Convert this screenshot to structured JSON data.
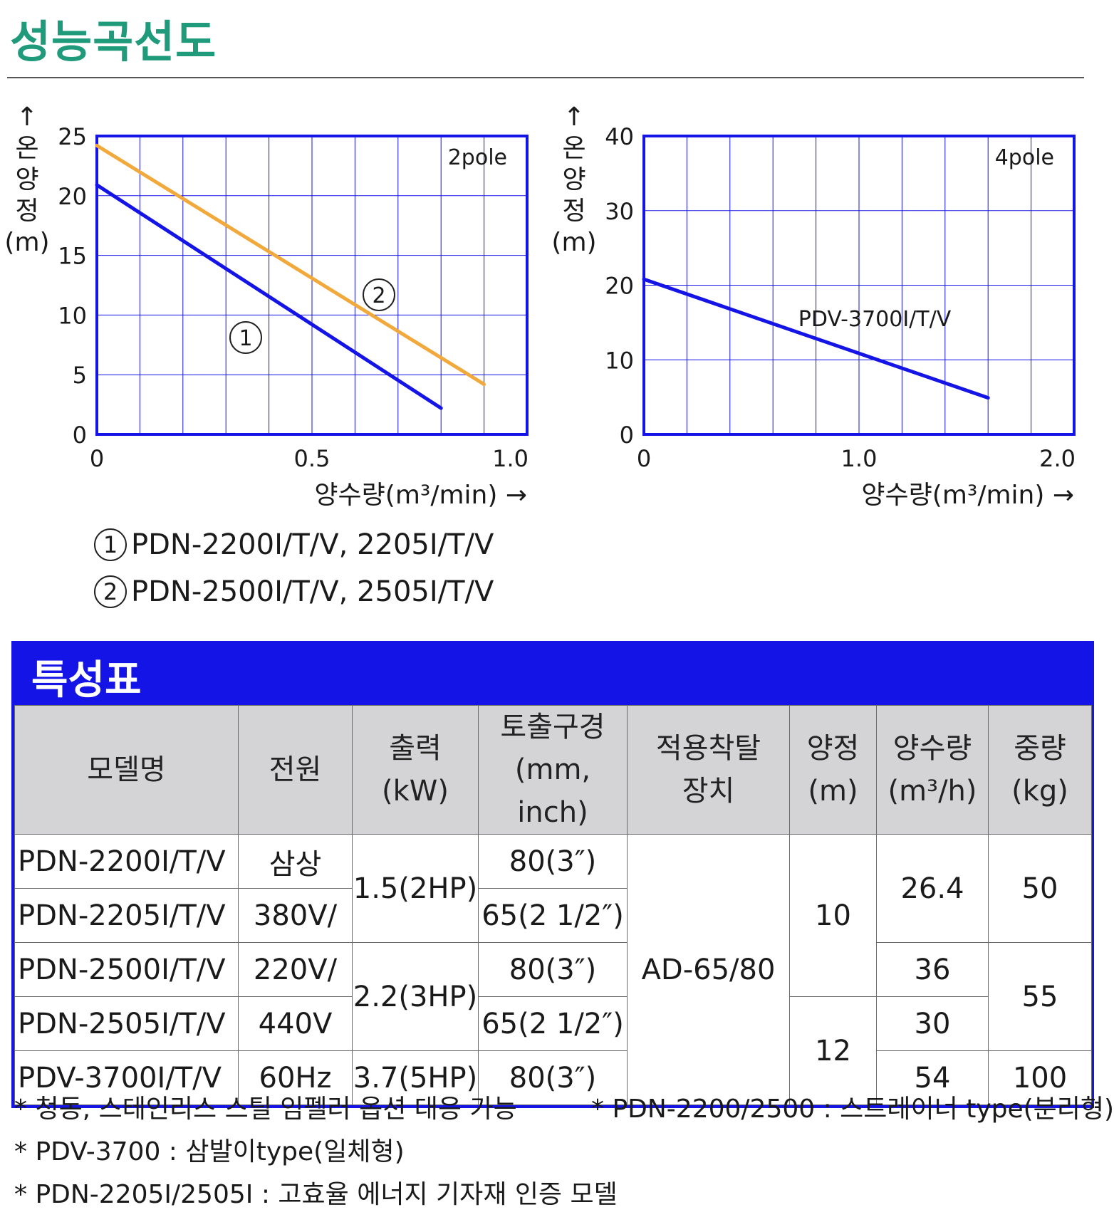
{
  "page_title": "성능곡선도",
  "chart_data": [
    {
      "type": "line",
      "pole_label": "2pole",
      "ylabel_chars": [
        "↑",
        "온",
        "양",
        "정",
        "(m)"
      ],
      "xlabel": "양수량(m³/min) →",
      "xlim": [
        0,
        1.0
      ],
      "ylim": [
        0,
        25
      ],
      "x_ticks": [
        0,
        0.5,
        1.0
      ],
      "x_tick_labels": [
        "0",
        "0.5",
        "1.0"
      ],
      "y_ticks": [
        0,
        5,
        10,
        15,
        20,
        25
      ],
      "y_tick_labels": [
        "0",
        "5",
        "10",
        "15",
        "20",
        "25"
      ],
      "grid": true,
      "series": [
        {
          "name": "①",
          "color": "#1414e6",
          "x": [
            0,
            0.8
          ],
          "y": [
            20.9,
            2.2
          ]
        },
        {
          "name": "②",
          "color": "#f2a93b",
          "x": [
            0,
            0.9
          ],
          "y": [
            24.2,
            4.2
          ]
        }
      ]
    },
    {
      "type": "line",
      "pole_label": "4pole",
      "ylabel_chars": [
        "↑",
        "온",
        "양",
        "정",
        "(m)"
      ],
      "xlabel": "양수량(m³/min) →",
      "xlim": [
        0,
        2.0
      ],
      "ylim": [
        0,
        40
      ],
      "x_ticks": [
        0,
        1.0,
        2.0
      ],
      "x_tick_labels": [
        "0",
        "1.0",
        "2.0"
      ],
      "y_ticks": [
        0,
        10,
        20,
        30,
        40
      ],
      "y_tick_labels": [
        "0",
        "10",
        "20",
        "30",
        "40"
      ],
      "grid": true,
      "series": [
        {
          "name": "PDV-3700I/T/V",
          "color": "#1414e6",
          "x": [
            0,
            1.6
          ],
          "y": [
            20.8,
            4.9
          ]
        }
      ]
    }
  ],
  "legend": [
    {
      "num": "1",
      "text": "PDN-2200I/T/V, 2205I/T/V"
    },
    {
      "num": "2",
      "text": "PDN-2500I/T/V, 2505I/T/V"
    }
  ],
  "spec": {
    "title": "특성표",
    "headers": {
      "model": "모델명",
      "power": "전원",
      "output_1": "출력",
      "output_2": "(kW)",
      "outlet_1": "토출구경",
      "outlet_2": "(mm, inch)",
      "device_1": "적용착탈",
      "device_2": "장치",
      "head_1": "양정",
      "head_2": "(m)",
      "flow_1": "양수량",
      "flow_2": "(m³/h)",
      "weight_1": "중량",
      "weight_2": "(kg)"
    },
    "models": [
      "PDN-2200I/T/V",
      "PDN-2205I/T/V",
      "PDN-2500I/T/V",
      "PDN-2505I/T/V",
      "PDV-3700I/T/V"
    ],
    "power": [
      "삼상",
      "380V/",
      "220V/",
      "440V",
      "60Hz"
    ],
    "outputs": [
      "1.5(2HP)",
      "2.2(3HP)",
      "3.7(5HP)"
    ],
    "outlets": [
      "80(3″)",
      "65(2 1/2″)",
      "80(3″)",
      "65(2 1/2″)",
      "80(3″)"
    ],
    "device": "AD-65/80",
    "heads": [
      "10",
      "12"
    ],
    "flows": [
      "26.4",
      "36",
      "30",
      "54"
    ],
    "weights": [
      "50",
      "55",
      "100"
    ]
  },
  "notes": {
    "note1": "* 청동, 스테인리스 스틸 임펠러 옵션 대응 가능",
    "note2": "* PDN-2200/2500 : 스트레이너 type(분리형)",
    "note3": "* PDV-3700 : 삼발이type(일체형)",
    "note4": "* PDN-2205I/2505I :  고효율 에너지 기자재 인증 모델"
  }
}
